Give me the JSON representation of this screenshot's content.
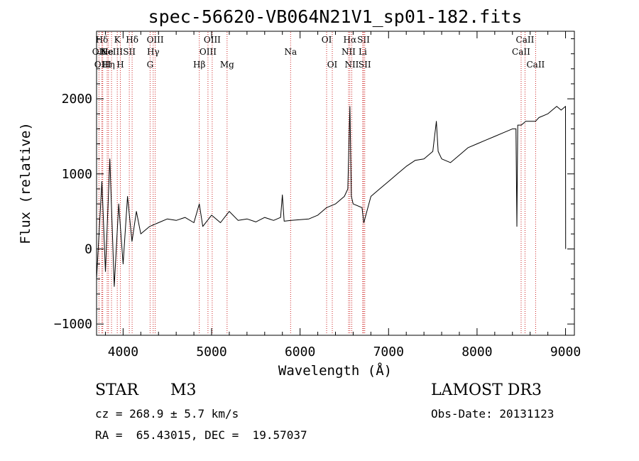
{
  "chart_data": {
    "type": "line",
    "title": "spec-56620-VB064N21V1_sp01-182.fits",
    "xlabel": "Wavelength (Å)",
    "ylabel": "Flux (relative)",
    "xlim": [
      3700,
      9100
    ],
    "ylim": [
      -1150,
      2900
    ],
    "xticks": [
      4000,
      5000,
      6000,
      7000,
      8000,
      9000
    ],
    "yticks": [
      -1000,
      0,
      1000,
      2000
    ],
    "series": [
      {
        "name": "flux",
        "x": [
          3700,
          3760,
          3800,
          3850,
          3900,
          3950,
          4000,
          4050,
          4100,
          4150,
          4200,
          4300,
          4400,
          4500,
          4600,
          4700,
          4800,
          4861,
          4900,
          5000,
          5100,
          5200,
          5300,
          5400,
          5500,
          5600,
          5700,
          5780,
          5800,
          5820,
          5900,
          6000,
          6100,
          6200,
          6300,
          6400,
          6500,
          6540,
          6563,
          6580,
          6600,
          6700,
          6720,
          6800,
          6900,
          7000,
          7100,
          7200,
          7300,
          7400,
          7500,
          7540,
          7560,
          7600,
          7700,
          7800,
          7900,
          8000,
          8100,
          8200,
          8300,
          8400,
          8440,
          8450,
          8460,
          8500,
          8550,
          8600,
          8660,
          8700,
          8800,
          8850,
          8900,
          8950,
          9000,
          9001
        ],
        "y": [
          -400,
          900,
          -300,
          1200,
          -500,
          600,
          -200,
          700,
          100,
          500,
          200,
          300,
          350,
          400,
          380,
          420,
          350,
          600,
          300,
          450,
          350,
          500,
          380,
          400,
          360,
          420,
          380,
          420,
          720,
          370,
          380,
          390,
          400,
          450,
          550,
          600,
          700,
          800,
          1900,
          700,
          600,
          550,
          350,
          700,
          800,
          900,
          1000,
          1100,
          1180,
          1200,
          1300,
          1700,
          1300,
          1200,
          1150,
          1250,
          1350,
          1400,
          1450,
          1500,
          1550,
          1600,
          1600,
          300,
          1650,
          1650,
          1700,
          1700,
          1700,
          1750,
          1800,
          1850,
          1900,
          1850,
          1900,
          0
        ]
      }
    ],
    "lines": [
      {
        "label": "Hδ",
        "x": 3760,
        "row": 0
      },
      {
        "label": "OII",
        "x": 3727,
        "row": 1
      },
      {
        "label": "OIII",
        "x": 3770,
        "row": 2
      },
      {
        "label": "He",
        "x": 3820,
        "row": 1
      },
      {
        "label": "Hη",
        "x": 3835,
        "row": 2
      },
      {
        "label": "K",
        "x": 3934,
        "row": 0
      },
      {
        "label": "H",
        "x": 3969,
        "row": 2
      },
      {
        "label": "NeIII",
        "x": 3869,
        "row": 1
      },
      {
        "label": "SII",
        "x": 4070,
        "row": 1
      },
      {
        "label": "Hδ",
        "x": 4102,
        "row": 0
      },
      {
        "label": "OIII",
        "x": 4363,
        "row": 0
      },
      {
        "label": "Hγ",
        "x": 4340,
        "row": 1
      },
      {
        "label": "G",
        "x": 4305,
        "row": 2
      },
      {
        "label": "Hβ",
        "x": 4861,
        "row": 2
      },
      {
        "label": "OIII",
        "x": 5007,
        "row": 0
      },
      {
        "label": "OIII",
        "x": 4959,
        "row": 1
      },
      {
        "label": "Mg",
        "x": 5175,
        "row": 2
      },
      {
        "label": "Na",
        "x": 5893,
        "row": 1
      },
      {
        "label": "OI",
        "x": 6300,
        "row": 0
      },
      {
        "label": "OI",
        "x": 6364,
        "row": 2
      },
      {
        "label": "Hα",
        "x": 6563,
        "row": 0
      },
      {
        "label": "NII",
        "x": 6548,
        "row": 1
      },
      {
        "label": "NII",
        "x": 6584,
        "row": 2
      },
      {
        "label": "SII",
        "x": 6717,
        "row": 0
      },
      {
        "label": "Li",
        "x": 6708,
        "row": 1
      },
      {
        "label": "SII",
        "x": 6731,
        "row": 2
      },
      {
        "label": "CaII",
        "x": 8542,
        "row": 0
      },
      {
        "label": "CaII",
        "x": 8498,
        "row": 1
      },
      {
        "label": "CaII",
        "x": 8662,
        "row": 2
      }
    ],
    "grid": false
  },
  "info": {
    "object_class": "STAR",
    "subclass": "M3",
    "survey": "LAMOST DR3",
    "cz": "cz = 268.9 ± 5.7 km/s",
    "obs_date": "Obs-Date: 20131123",
    "coords": "RA =  65.43015, DEC =  19.57037"
  },
  "colors": {
    "line_marker": "#cc2222",
    "spectrum": "#000000",
    "axes": "#000000"
  }
}
